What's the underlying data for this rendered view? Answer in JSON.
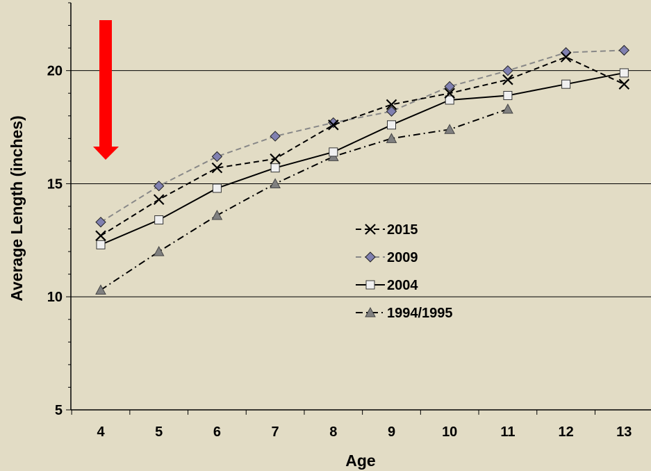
{
  "chart_data": {
    "type": "line",
    "title": "",
    "xlabel": "Age",
    "ylabel": "Average Length (inches)",
    "x": [
      4,
      5,
      6,
      7,
      8,
      9,
      10,
      11,
      12,
      13
    ],
    "ylim": [
      5,
      23
    ],
    "yticks": [
      5,
      10,
      15,
      20
    ],
    "grid": "horizontal at y-ticks",
    "legend_position": "center-right",
    "annotation": "red downward arrow at age 4",
    "annotation_color": "#ff0000",
    "series": [
      {
        "name": "2015",
        "values": [
          12.7,
          14.3,
          15.7,
          16.1,
          17.6,
          18.5,
          19.0,
          19.6,
          20.6,
          19.4
        ],
        "color": "#000000",
        "dash": "dashed",
        "marker": "x"
      },
      {
        "name": "2009",
        "values": [
          13.3,
          14.9,
          16.2,
          17.1,
          17.7,
          18.2,
          19.3,
          20.0,
          20.8,
          20.9
        ],
        "color": "#888888",
        "dash": "dashed",
        "marker": "diamond",
        "marker_fill": "#8080b0"
      },
      {
        "name": "2004",
        "values": [
          12.3,
          13.4,
          14.8,
          15.7,
          16.4,
          17.6,
          18.7,
          18.9,
          19.4,
          19.9
        ],
        "color": "#000000",
        "dash": "solid",
        "marker": "square",
        "marker_fill": "#f0f0f0"
      },
      {
        "name": "1994/1995",
        "values": [
          10.3,
          12.0,
          13.6,
          15.0,
          16.2,
          17.0,
          17.4,
          18.3,
          null,
          null
        ],
        "color": "#000000",
        "dash": "dash-dot",
        "marker": "triangle",
        "marker_fill": "#808080"
      }
    ]
  }
}
